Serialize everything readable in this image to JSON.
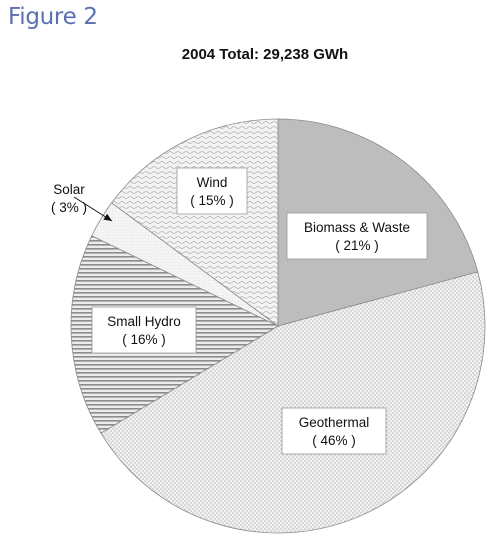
{
  "figure_label": "Figure 2",
  "chart_data": {
    "type": "pie",
    "title": "2004 Total: 29,238 GWh",
    "slices": [
      {
        "name": "Biomass & Waste",
        "value": 21,
        "label": "( 21% )",
        "fill": "#bdbdbd",
        "pattern": "solid"
      },
      {
        "name": "Geothermal",
        "value": 46,
        "label": "( 46% )",
        "fill": "#ededed",
        "pattern": "dots"
      },
      {
        "name": "Small Hydro",
        "value": 16,
        "label": "( 16% )",
        "fill": "#d8d8d8",
        "pattern": "hlines"
      },
      {
        "name": "Solar",
        "value": 3,
        "label": "( 3% )",
        "fill": "#f2f2f2",
        "pattern": "light"
      },
      {
        "name": "Wind",
        "value": 15,
        "label": "( 15% )",
        "fill": "#eeeeee",
        "pattern": "waves"
      }
    ],
    "legend": "none",
    "start": "top, clockwise"
  }
}
